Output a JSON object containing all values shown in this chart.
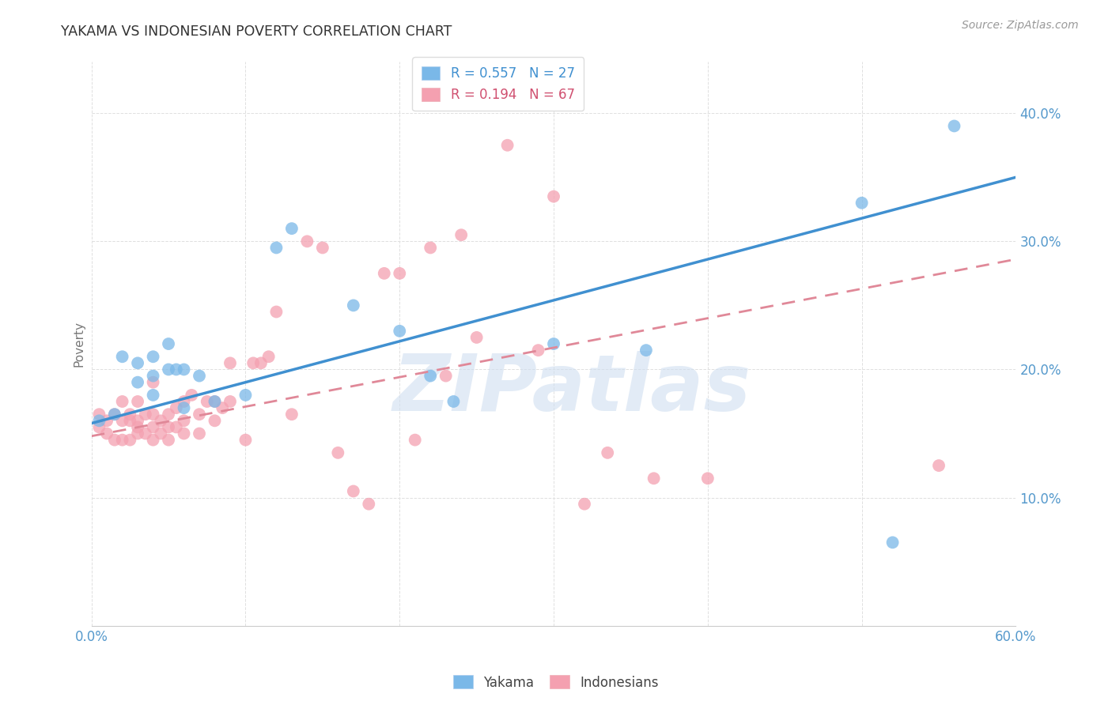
{
  "title": "YAKAMA VS INDONESIAN POVERTY CORRELATION CHART",
  "source": "Source: ZipAtlas.com",
  "ylabel": "Poverty",
  "xlim": [
    0.0,
    0.6
  ],
  "ylim": [
    0.0,
    0.44
  ],
  "xticks": [
    0.0,
    0.1,
    0.2,
    0.3,
    0.4,
    0.5,
    0.6
  ],
  "xtick_labels": [
    "0.0%",
    "",
    "",
    "",
    "",
    "",
    "60.0%"
  ],
  "ytick_labels": [
    "",
    "10.0%",
    "20.0%",
    "30.0%",
    "40.0%"
  ],
  "yticks": [
    0.0,
    0.1,
    0.2,
    0.3,
    0.4
  ],
  "yakama_color": "#7ab8e8",
  "indonesian_color": "#f4a0b0",
  "trendline_yakama_color": "#4090d0",
  "trendline_indonesian_color": "#e08898",
  "background_color": "#ffffff",
  "grid_color": "#e0e0e0",
  "watermark": "ZIPatlas",
  "legend_R_yakama": "R = 0.557",
  "legend_N_yakama": "N = 27",
  "legend_R_indonesian": "R = 0.194",
  "legend_N_indonesian": "N = 67",
  "yakama_x": [
    0.005,
    0.015,
    0.02,
    0.03,
    0.03,
    0.04,
    0.04,
    0.04,
    0.05,
    0.05,
    0.055,
    0.06,
    0.06,
    0.07,
    0.08,
    0.1,
    0.12,
    0.13,
    0.17,
    0.2,
    0.22,
    0.235,
    0.3,
    0.36,
    0.5,
    0.52,
    0.56
  ],
  "yakama_y": [
    0.16,
    0.165,
    0.21,
    0.19,
    0.205,
    0.18,
    0.195,
    0.21,
    0.2,
    0.22,
    0.2,
    0.17,
    0.2,
    0.195,
    0.175,
    0.18,
    0.295,
    0.31,
    0.25,
    0.23,
    0.195,
    0.175,
    0.22,
    0.215,
    0.33,
    0.065,
    0.39
  ],
  "indonesian_x": [
    0.005,
    0.005,
    0.01,
    0.01,
    0.015,
    0.015,
    0.02,
    0.02,
    0.02,
    0.025,
    0.025,
    0.025,
    0.03,
    0.03,
    0.03,
    0.03,
    0.035,
    0.035,
    0.04,
    0.04,
    0.04,
    0.04,
    0.045,
    0.045,
    0.05,
    0.05,
    0.05,
    0.055,
    0.055,
    0.06,
    0.06,
    0.06,
    0.065,
    0.07,
    0.07,
    0.075,
    0.08,
    0.08,
    0.085,
    0.09,
    0.09,
    0.1,
    0.105,
    0.11,
    0.115,
    0.12,
    0.13,
    0.14,
    0.15,
    0.16,
    0.17,
    0.18,
    0.19,
    0.2,
    0.21,
    0.22,
    0.23,
    0.24,
    0.25,
    0.27,
    0.29,
    0.3,
    0.32,
    0.335,
    0.365,
    0.4,
    0.55
  ],
  "indonesian_y": [
    0.155,
    0.165,
    0.15,
    0.16,
    0.145,
    0.165,
    0.145,
    0.16,
    0.175,
    0.145,
    0.16,
    0.165,
    0.15,
    0.155,
    0.16,
    0.175,
    0.15,
    0.165,
    0.145,
    0.155,
    0.165,
    0.19,
    0.15,
    0.16,
    0.145,
    0.155,
    0.165,
    0.155,
    0.17,
    0.15,
    0.16,
    0.175,
    0.18,
    0.15,
    0.165,
    0.175,
    0.16,
    0.175,
    0.17,
    0.175,
    0.205,
    0.145,
    0.205,
    0.205,
    0.21,
    0.245,
    0.165,
    0.3,
    0.295,
    0.135,
    0.105,
    0.095,
    0.275,
    0.275,
    0.145,
    0.295,
    0.195,
    0.305,
    0.225,
    0.375,
    0.215,
    0.335,
    0.095,
    0.135,
    0.115,
    0.115,
    0.125
  ],
  "trendline_yakama_intercept": 0.158,
  "trendline_yakama_slope": 0.32,
  "trendline_indonesian_intercept": 0.148,
  "trendline_indonesian_slope": 0.23
}
